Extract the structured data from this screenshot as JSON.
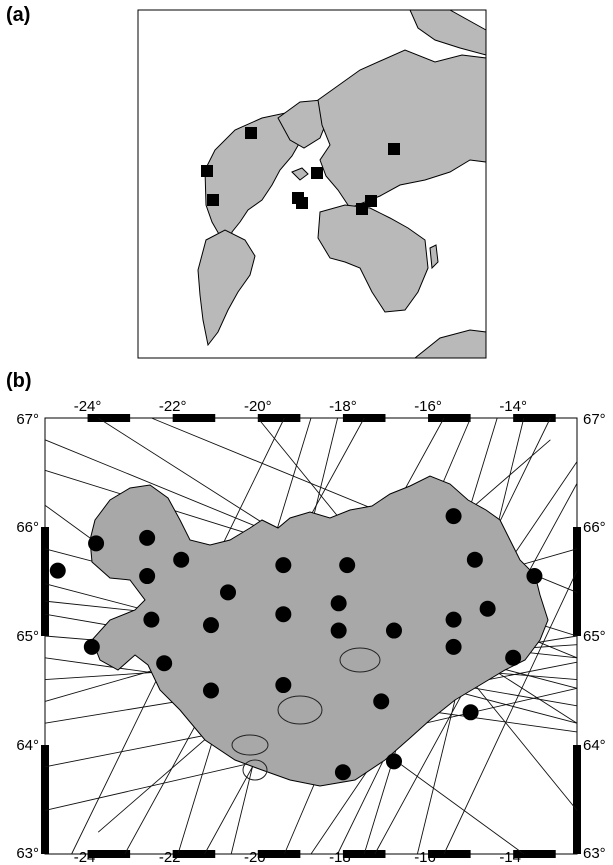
{
  "panel_a": {
    "label": "(a)"
  },
  "panel_b": {
    "label": "(b)",
    "x_ticks": [
      {
        "value": -24,
        "text": "-24°"
      },
      {
        "value": -22,
        "text": "-22°"
      },
      {
        "value": -20,
        "text": "-20°"
      },
      {
        "value": -18,
        "text": "-18°"
      },
      {
        "value": -16,
        "text": "-16°"
      },
      {
        "value": -14,
        "text": "-14°"
      }
    ],
    "y_ticks": [
      {
        "value": 67,
        "text": "67°"
      },
      {
        "value": 66,
        "text": "66°"
      },
      {
        "value": 65,
        "text": "65°"
      },
      {
        "value": 64,
        "text": "64°"
      },
      {
        "value": 63,
        "text": "63°"
      }
    ],
    "lon_range": [
      -25,
      -12.5
    ],
    "lat_range": [
      63,
      67
    ],
    "stations": [
      [
        -23.8,
        65.85
      ],
      [
        -22.6,
        65.9
      ],
      [
        -21.8,
        65.7
      ],
      [
        -24.7,
        65.6
      ],
      [
        -22.6,
        65.55
      ],
      [
        -20.7,
        65.4
      ],
      [
        -19.4,
        65.65
      ],
      [
        -17.9,
        65.65
      ],
      [
        -15.4,
        66.1
      ],
      [
        -14.9,
        65.7
      ],
      [
        -13.5,
        65.55
      ],
      [
        -22.5,
        65.15
      ],
      [
        -21.1,
        65.1
      ],
      [
        -19.4,
        65.2
      ],
      [
        -18.1,
        65.3
      ],
      [
        -18.1,
        65.05
      ],
      [
        -16.8,
        65.05
      ],
      [
        -15.4,
        65.15
      ],
      [
        -14.6,
        65.25
      ],
      [
        -23.9,
        64.9
      ],
      [
        -22.2,
        64.75
      ],
      [
        -21.1,
        64.5
      ],
      [
        -19.4,
        64.55
      ],
      [
        -17.1,
        64.4
      ],
      [
        -15.4,
        64.9
      ],
      [
        -14.0,
        64.8
      ],
      [
        -15.0,
        64.3
      ],
      [
        -16.8,
        63.85
      ],
      [
        -18.0,
        63.75
      ]
    ]
  },
  "colors": {
    "land": "#b9b9b9",
    "line": "#111111",
    "marker": "#000000"
  }
}
